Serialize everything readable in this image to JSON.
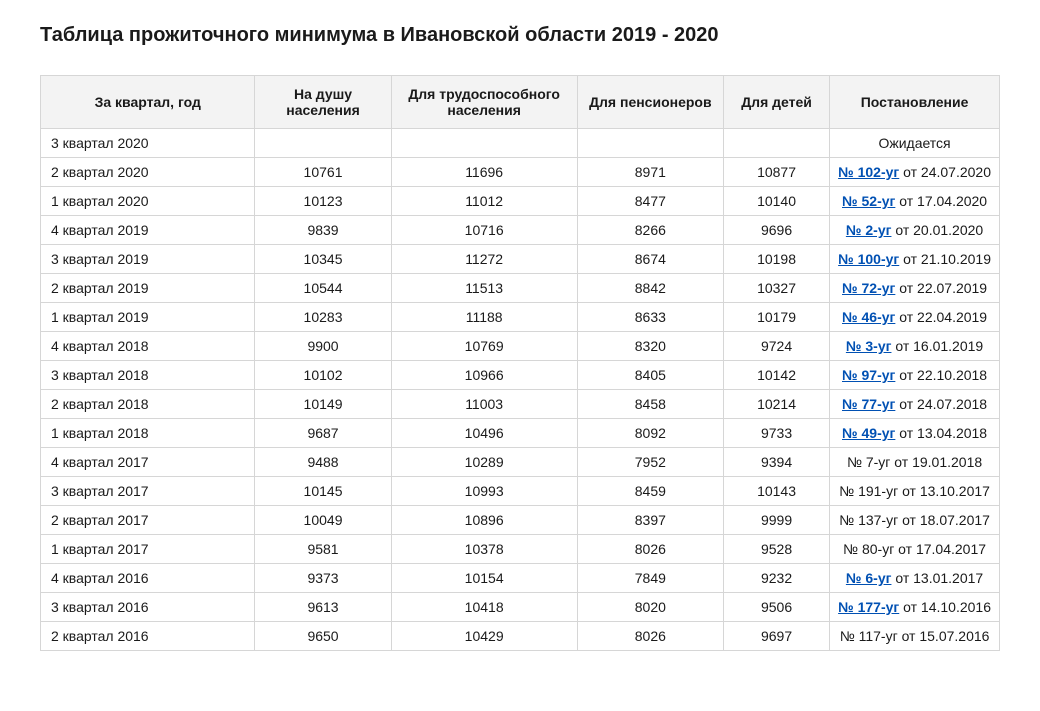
{
  "title": "Таблица прожиточного минимума в Ивановской области 2019 - 2020",
  "table": {
    "columns": [
      "За квартал, год",
      "На душу населения",
      "Для трудоспособного населения",
      "Для пенсионеров",
      "Для детей",
      "Постановление"
    ],
    "col_classes": [
      "col-period",
      "col-percap",
      "col-work",
      "col-pens",
      "col-child",
      "col-decree"
    ],
    "row_period_align": "left",
    "link_color": "#0050b3",
    "border_color": "#d6d6d6",
    "header_bg": "#f3f3f3",
    "rows": [
      {
        "period": "3 квартал 2020",
        "per_capita": "",
        "workers": "",
        "pensioners": "",
        "children": "",
        "decree_link": "",
        "decree_suffix": "Ожидается"
      },
      {
        "period": "2 квартал 2020",
        "per_capita": "10761",
        "workers": "11696",
        "pensioners": "8971",
        "children": "10877",
        "decree_link": "№ 102-уг",
        "decree_suffix": " от 24.07.2020"
      },
      {
        "period": "1 квартал 2020",
        "per_capita": "10123",
        "workers": "11012",
        "pensioners": "8477",
        "children": "10140",
        "decree_link": "№ 52-уг",
        "decree_suffix": " от 17.04.2020"
      },
      {
        "period": "4 квартал 2019",
        "per_capita": "9839",
        "workers": "10716",
        "pensioners": "8266",
        "children": "9696",
        "decree_link": "№ 2-уг",
        "decree_suffix": " от 20.01.2020"
      },
      {
        "period": "3 квартал 2019",
        "per_capita": "10345",
        "workers": "11272",
        "pensioners": "8674",
        "children": "10198",
        "decree_link": "№ 100-уг",
        "decree_suffix": " от 21.10.2019"
      },
      {
        "period": "2 квартал 2019",
        "per_capita": "10544",
        "workers": "11513",
        "pensioners": "8842",
        "children": "10327",
        "decree_link": "№ 72-уг",
        "decree_suffix": " от 22.07.2019"
      },
      {
        "period": "1 квартал 2019",
        "per_capita": "10283",
        "workers": "11188",
        "pensioners": "8633",
        "children": "10179",
        "decree_link": "№ 46-уг",
        "decree_suffix": " от 22.04.2019"
      },
      {
        "period": "4 квартал 2018",
        "per_capita": "9900",
        "workers": "10769",
        "pensioners": "8320",
        "children": "9724",
        "decree_link": "№ 3-уг",
        "decree_suffix": " от 16.01.2019"
      },
      {
        "period": "3 квартал 2018",
        "per_capita": "10102",
        "workers": "10966",
        "pensioners": "8405",
        "children": "10142",
        "decree_link": "№ 97-уг",
        "decree_suffix": " от 22.10.2018"
      },
      {
        "period": "2 квартал 2018",
        "per_capita": "10149",
        "workers": "11003",
        "pensioners": "8458",
        "children": "10214",
        "decree_link": "№ 77-уг",
        "decree_suffix": " от 24.07.2018"
      },
      {
        "period": "1 квартал 2018",
        "per_capita": "9687",
        "workers": "10496",
        "pensioners": "8092",
        "children": "9733",
        "decree_link": "№ 49-уг",
        "decree_suffix": " от 13.04.2018"
      },
      {
        "period": "4 квартал 2017",
        "per_capita": "9488",
        "workers": "10289",
        "pensioners": "7952",
        "children": "9394",
        "decree_link": "",
        "decree_suffix": "№ 7-уг от 19.01.2018"
      },
      {
        "period": "3 квартал 2017",
        "per_capita": "10145",
        "workers": "10993",
        "pensioners": "8459",
        "children": "10143",
        "decree_link": "",
        "decree_suffix": "№ 191-уг от 13.10.2017"
      },
      {
        "period": "2 квартал 2017",
        "per_capita": "10049",
        "workers": "10896",
        "pensioners": "8397",
        "children": "9999",
        "decree_link": "",
        "decree_suffix": "№ 137-уг от 18.07.2017"
      },
      {
        "period": "1 квартал 2017",
        "per_capita": "9581",
        "workers": "10378",
        "pensioners": "8026",
        "children": "9528",
        "decree_link": "",
        "decree_suffix": "№ 80-уг от 17.04.2017"
      },
      {
        "period": "4 квартал 2016",
        "per_capita": "9373",
        "workers": "10154",
        "pensioners": "7849",
        "children": "9232",
        "decree_link": "№ 6-уг",
        "decree_suffix": " от 13.01.2017"
      },
      {
        "period": "3 квартал 2016",
        "per_capita": "9613",
        "workers": "10418",
        "pensioners": "8020",
        "children": "9506",
        "decree_link": "№ 177-уг",
        "decree_suffix": " от 14.10.2016"
      },
      {
        "period": "2 квартал 2016",
        "per_capita": "9650",
        "workers": "10429",
        "pensioners": "8026",
        "children": "9697",
        "decree_link": "",
        "decree_suffix": "№ 117-уг от 15.07.2016"
      }
    ]
  }
}
